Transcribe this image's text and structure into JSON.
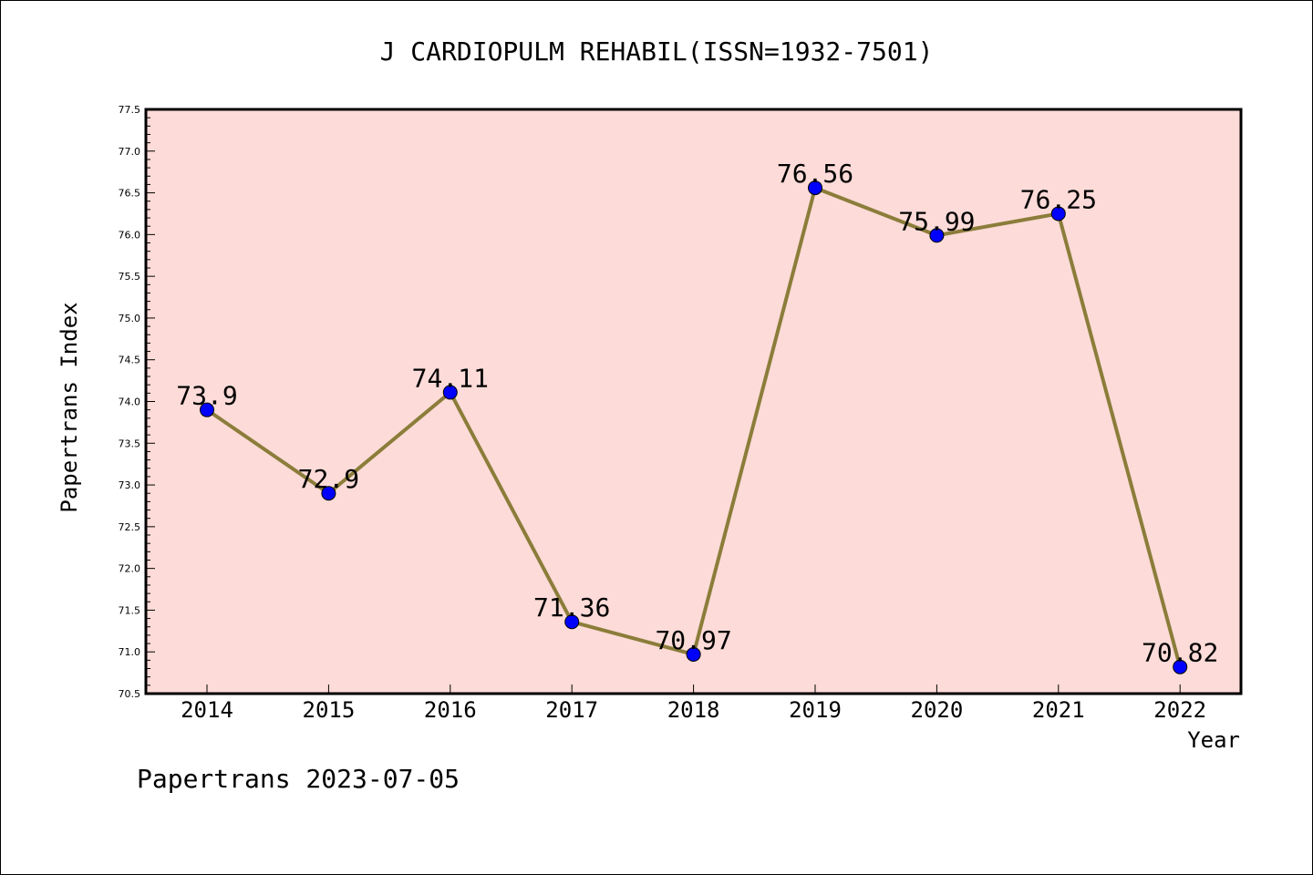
{
  "chart_data": {
    "type": "line",
    "title": "J CARDIOPULM REHABIL(ISSN=1932-7501)",
    "xlabel": "Year",
    "ylabel": "Papertrans Index",
    "categories": [
      "2014",
      "2015",
      "2016",
      "2017",
      "2018",
      "2019",
      "2020",
      "2021",
      "2022"
    ],
    "values": [
      73.9,
      72.9,
      74.11,
      71.36,
      70.97,
      76.56,
      75.99,
      76.25,
      70.82
    ],
    "data_labels": [
      "73.9",
      "72.9",
      "74.11",
      "71.36",
      "70.97",
      "76.56",
      "75.99",
      "76.25",
      "70.82"
    ],
    "ylim": [
      70.5,
      77.5
    ],
    "yticks": [
      "70.5",
      "71.0",
      "71.5",
      "72.0",
      "72.5",
      "73.0",
      "73.5",
      "74.0",
      "74.5",
      "75.0",
      "75.5",
      "76.0",
      "76.5",
      "77.0",
      "77.5"
    ],
    "grid": false,
    "colors": {
      "plot_background": "#fddbd8",
      "line": "#8b7d3a",
      "marker": "#0000ff"
    }
  },
  "footer": "Papertrans 2023-07-05"
}
